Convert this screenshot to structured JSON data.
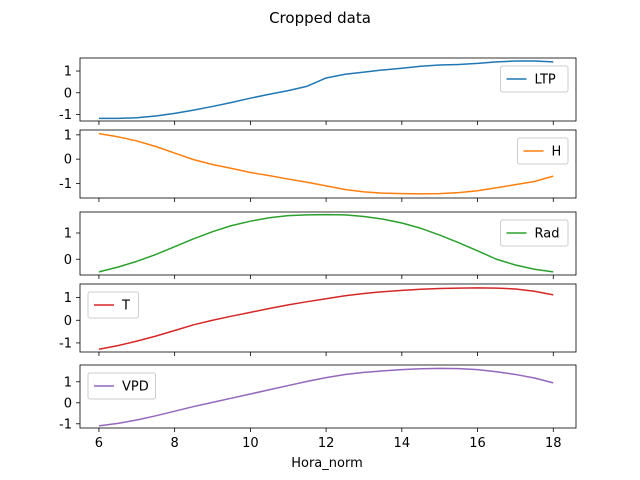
{
  "chart_data": {
    "type": "line",
    "title": "Cropped data",
    "xlabel": "Hora_norm",
    "xlim": [
      5.5,
      18.6
    ],
    "xticks": [
      6,
      8,
      10,
      12,
      14,
      16,
      18
    ],
    "panels": [
      {
        "name": "LTP",
        "color": "#1f77b4",
        "legend_position": "upper right",
        "ylim": [
          -1.3,
          1.6
        ],
        "yticks": [
          -1,
          0,
          1
        ],
        "x": [
          6,
          6.5,
          7,
          7.5,
          8,
          8.5,
          9,
          9.5,
          10,
          10.5,
          11,
          11.5,
          12,
          12.5,
          13,
          13.5,
          14,
          14.5,
          15,
          15.5,
          16,
          16.5,
          17,
          17.5,
          18
        ],
        "y": [
          -1.18,
          -1.18,
          -1.15,
          -1.07,
          -0.95,
          -0.8,
          -0.63,
          -0.45,
          -0.25,
          -0.07,
          0.1,
          0.3,
          0.68,
          0.85,
          0.95,
          1.05,
          1.13,
          1.22,
          1.28,
          1.3,
          1.35,
          1.42,
          1.46,
          1.46,
          1.42
        ]
      },
      {
        "name": "H",
        "color": "#ff7f0e",
        "legend_position": "upper right",
        "ylim": [
          -1.6,
          1.2
        ],
        "yticks": [
          -1,
          0,
          1
        ],
        "x": [
          6,
          6.5,
          7,
          7.5,
          8,
          8.5,
          9,
          9.5,
          10,
          10.5,
          11,
          11.5,
          12,
          12.5,
          13,
          13.5,
          14,
          14.5,
          15,
          15.5,
          16,
          16.5,
          17,
          17.5,
          18
        ],
        "y": [
          1.05,
          0.92,
          0.75,
          0.52,
          0.25,
          -0.02,
          -0.22,
          -0.38,
          -0.55,
          -0.68,
          -0.82,
          -0.95,
          -1.1,
          -1.25,
          -1.35,
          -1.4,
          -1.42,
          -1.43,
          -1.42,
          -1.38,
          -1.3,
          -1.18,
          -1.05,
          -0.92,
          -0.7
        ]
      },
      {
        "name": "Rad",
        "color": "#2ca02c",
        "legend_position": "upper right",
        "ylim": [
          -0.6,
          1.8
        ],
        "yticks": [
          0,
          1
        ],
        "x": [
          6,
          6.5,
          7,
          7.5,
          8,
          8.5,
          9,
          9.5,
          10,
          10.5,
          11,
          11.5,
          12,
          12.5,
          13,
          13.5,
          14,
          14.5,
          15,
          15.5,
          16,
          16.5,
          17,
          17.5,
          18
        ],
        "y": [
          -0.48,
          -0.3,
          -0.08,
          0.18,
          0.48,
          0.78,
          1.05,
          1.28,
          1.45,
          1.58,
          1.66,
          1.69,
          1.7,
          1.69,
          1.63,
          1.53,
          1.38,
          1.18,
          0.92,
          0.63,
          0.32,
          0.0,
          -0.22,
          -0.38,
          -0.48
        ]
      },
      {
        "name": "T",
        "color": "#d62728",
        "legend_position": "upper left",
        "ylim": [
          -1.4,
          1.6
        ],
        "yticks": [
          -1,
          0,
          1
        ],
        "x": [
          6,
          6.5,
          7,
          7.5,
          8,
          8.5,
          9,
          9.5,
          10,
          10.5,
          11,
          11.5,
          12,
          12.5,
          13,
          13.5,
          14,
          14.5,
          15,
          15.5,
          16,
          16.5,
          17,
          17.5,
          18
        ],
        "y": [
          -1.28,
          -1.12,
          -0.92,
          -0.7,
          -0.45,
          -0.2,
          0.0,
          0.18,
          0.35,
          0.52,
          0.68,
          0.82,
          0.95,
          1.08,
          1.18,
          1.26,
          1.32,
          1.37,
          1.4,
          1.42,
          1.43,
          1.42,
          1.38,
          1.28,
          1.12
        ]
      },
      {
        "name": "VPD",
        "color": "#9467bd",
        "legend_position": "upper left",
        "ylim": [
          -1.2,
          1.8
        ],
        "yticks": [
          -1,
          0,
          1
        ],
        "x": [
          6,
          6.5,
          7,
          7.5,
          8,
          8.5,
          9,
          9.5,
          10,
          10.5,
          11,
          11.5,
          12,
          12.5,
          13,
          13.5,
          14,
          14.5,
          15,
          15.5,
          16,
          16.5,
          17,
          17.5,
          18
        ],
        "y": [
          -1.1,
          -0.98,
          -0.82,
          -0.62,
          -0.4,
          -0.18,
          0.02,
          0.22,
          0.42,
          0.62,
          0.82,
          1.02,
          1.2,
          1.35,
          1.45,
          1.52,
          1.58,
          1.62,
          1.64,
          1.63,
          1.58,
          1.48,
          1.35,
          1.18,
          0.95
        ]
      }
    ]
  }
}
